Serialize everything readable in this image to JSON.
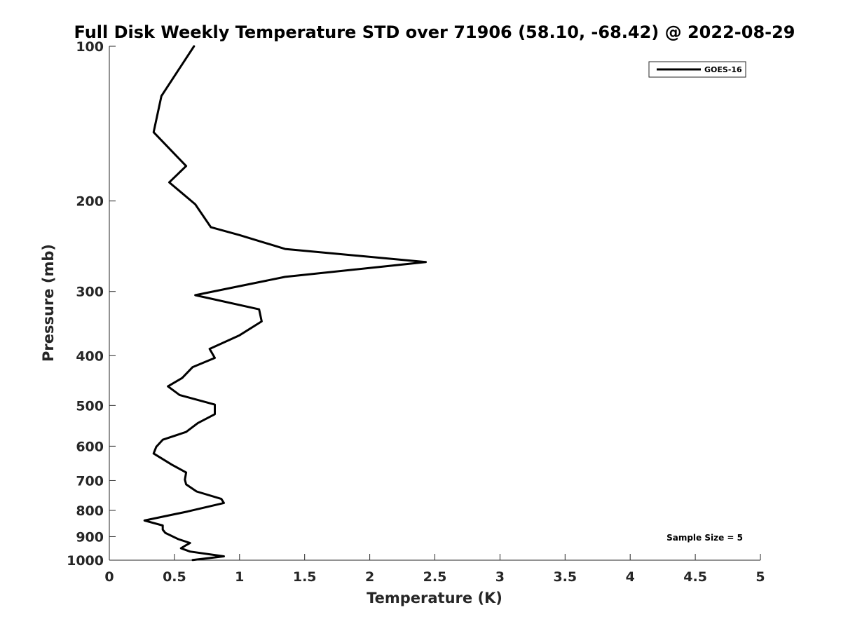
{
  "chart_data": {
    "type": "line",
    "title": "Full Disk Weekly Temperature STD over 71906 (58.10, -68.42) @ 2022-08-29",
    "xlabel": "Temperature (K)",
    "ylabel": "Pressure (mb)",
    "xlim": [
      0,
      5
    ],
    "ylim": [
      100,
      1000
    ],
    "yscale": "log",
    "yreversed": true,
    "xticks": [
      0,
      0.5,
      1,
      1.5,
      2,
      2.5,
      3,
      3.5,
      4,
      4.5,
      5
    ],
    "xtick_labels": [
      "0",
      "0.5",
      "1",
      "1.5",
      "2",
      "2.5",
      "3",
      "3.5",
      "4",
      "4.5",
      "5"
    ],
    "yticks": [
      100,
      200,
      300,
      400,
      500,
      600,
      700,
      800,
      900,
      1000
    ],
    "ytick_labels": [
      "100",
      "200",
      "300",
      "400",
      "500",
      "600",
      "700",
      "800",
      "900",
      "1000"
    ],
    "grid": false,
    "legend": {
      "position": "top-right",
      "entries": [
        "GOES-16"
      ]
    },
    "annotation": "Sample Size = 5",
    "series": [
      {
        "name": "GOES-16",
        "color": "#000000",
        "points": [
          [
            0.65,
            100
          ],
          [
            0.4,
            125
          ],
          [
            0.34,
            147
          ],
          [
            0.59,
            171
          ],
          [
            0.46,
            184
          ],
          [
            0.66,
            203
          ],
          [
            0.78,
            225
          ],
          [
            1.0,
            233
          ],
          [
            1.35,
            248
          ],
          [
            2.43,
            263
          ],
          [
            1.35,
            281
          ],
          [
            0.66,
            305
          ],
          [
            1.15,
            325
          ],
          [
            1.17,
            343
          ],
          [
            1.0,
            365
          ],
          [
            0.77,
            388
          ],
          [
            0.81,
            404
          ],
          [
            0.64,
            421
          ],
          [
            0.56,
            442
          ],
          [
            0.45,
            459
          ],
          [
            0.54,
            477
          ],
          [
            0.81,
            498
          ],
          [
            0.81,
            520
          ],
          [
            0.68,
            541
          ],
          [
            0.59,
            563
          ],
          [
            0.41,
            583
          ],
          [
            0.36,
            602
          ],
          [
            0.34,
            620
          ],
          [
            0.48,
            652
          ],
          [
            0.59,
            675
          ],
          [
            0.58,
            697
          ],
          [
            0.59,
            712
          ],
          [
            0.67,
            735
          ],
          [
            0.86,
            760
          ],
          [
            0.88,
            774
          ],
          [
            0.6,
            804
          ],
          [
            0.27,
            837
          ],
          [
            0.41,
            856
          ],
          [
            0.41,
            872
          ],
          [
            0.43,
            885
          ],
          [
            0.53,
            910
          ],
          [
            0.62,
            926
          ],
          [
            0.58,
            938
          ],
          [
            0.55,
            948
          ],
          [
            0.62,
            962
          ],
          [
            0.88,
            983
          ],
          [
            0.64,
            999
          ]
        ]
      }
    ]
  }
}
